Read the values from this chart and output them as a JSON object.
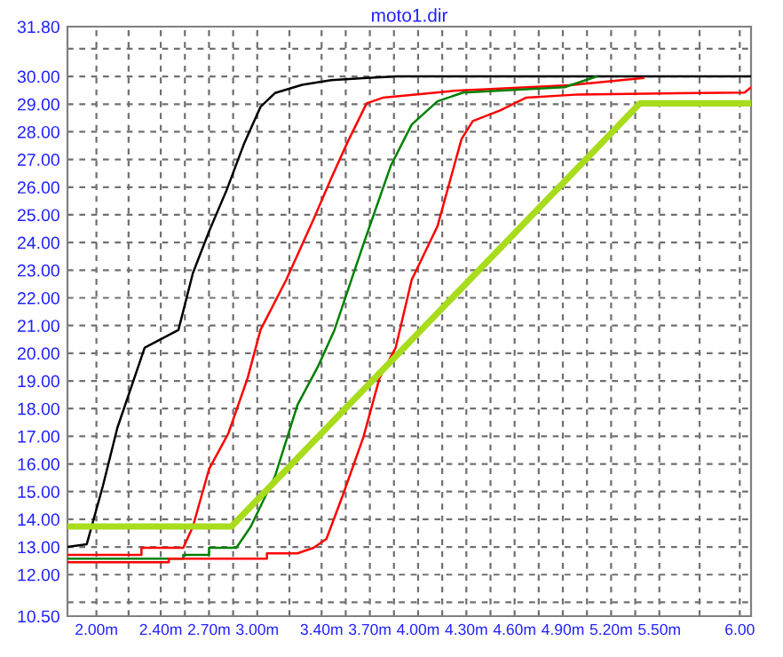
{
  "chart_data": {
    "type": "line",
    "title": "moto1.dir",
    "xlim": [
      1.82,
      6.07
    ],
    "ylim": [
      10.5,
      31.8
    ],
    "xticks": [
      {
        "value": 2.0,
        "label": "2.00m"
      },
      {
        "value": 2.2,
        "label": null
      },
      {
        "value": 2.4,
        "label": "2.40m"
      },
      {
        "value": 2.55,
        "label": null
      },
      {
        "value": 2.7,
        "label": "2.70m"
      },
      {
        "value": 2.85,
        "label": null
      },
      {
        "value": 3.0,
        "label": "3.00m"
      },
      {
        "value": 3.2,
        "label": null
      },
      {
        "value": 3.4,
        "label": "3.40m"
      },
      {
        "value": 3.55,
        "label": null
      },
      {
        "value": 3.7,
        "label": "3.70m"
      },
      {
        "value": 3.85,
        "label": null
      },
      {
        "value": 4.0,
        "label": "4.00m"
      },
      {
        "value": 4.15,
        "label": null
      },
      {
        "value": 4.3,
        "label": "4.30m"
      },
      {
        "value": 4.45,
        "label": null
      },
      {
        "value": 4.6,
        "label": "4.60m"
      },
      {
        "value": 4.75,
        "label": null
      },
      {
        "value": 4.9,
        "label": "4.90m"
      },
      {
        "value": 5.05,
        "label": null
      },
      {
        "value": 5.2,
        "label": "5.20m"
      },
      {
        "value": 5.35,
        "label": null
      },
      {
        "value": 5.5,
        "label": "5.50m"
      },
      {
        "value": 5.75,
        "label": null
      },
      {
        "value": 6.0,
        "label": "6.00"
      }
    ],
    "yticks": [
      {
        "value": 10.5,
        "label": "10.50"
      },
      {
        "value": 11,
        "label": null
      },
      {
        "value": 12,
        "label": "12.00"
      },
      {
        "value": 13,
        "label": "13.00"
      },
      {
        "value": 14,
        "label": "14.00"
      },
      {
        "value": 15,
        "label": "15.00"
      },
      {
        "value": 16,
        "label": "16.00"
      },
      {
        "value": 17,
        "label": "17.00"
      },
      {
        "value": 18,
        "label": "18.00"
      },
      {
        "value": 19,
        "label": "19.00"
      },
      {
        "value": 20,
        "label": "20.00"
      },
      {
        "value": 21,
        "label": "21.00"
      },
      {
        "value": 22,
        "label": "22.00"
      },
      {
        "value": 23,
        "label": "23.00"
      },
      {
        "value": 24,
        "label": "24.00"
      },
      {
        "value": 25,
        "label": "25.00"
      },
      {
        "value": 26,
        "label": "26.00"
      },
      {
        "value": 27,
        "label": "27.00"
      },
      {
        "value": 28,
        "label": "28.00"
      },
      {
        "value": 29,
        "label": "29.00"
      },
      {
        "value": 30,
        "label": "30.00"
      },
      {
        "value": 31,
        "label": null
      },
      {
        "value": 31.8,
        "label": "31.80"
      }
    ],
    "grid": true,
    "legend": false,
    "marker": "none",
    "line_style": "solid",
    "series": [
      {
        "color": "#000000",
        "x": [
          1.82,
          1.94,
          2.04,
          2.13,
          2.3,
          2.51,
          2.6,
          2.7,
          2.81,
          2.92,
          3.02,
          3.11,
          3.28,
          3.46,
          3.66,
          3.87,
          6.07
        ],
        "values": [
          13.0,
          13.1,
          15.2,
          17.3,
          20.2,
          20.84,
          22.9,
          24.4,
          25.9,
          27.6,
          28.9,
          29.4,
          29.7,
          29.87,
          29.94,
          30.0,
          30.0
        ]
      },
      {
        "color": "#ff0000",
        "x": [
          1.82,
          2.28,
          2.28,
          2.54,
          2.6,
          2.7,
          2.82,
          2.94,
          3.02,
          3.18,
          3.35,
          3.46,
          3.56,
          3.68,
          3.78,
          4.22,
          4.94,
          5.4
        ],
        "values": [
          12.71,
          12.71,
          12.97,
          12.97,
          13.74,
          15.81,
          17.1,
          19.1,
          20.84,
          22.65,
          24.84,
          26.32,
          27.61,
          29.03,
          29.23,
          29.48,
          29.68,
          29.94
        ]
      },
      {
        "color": "#008000",
        "x": [
          1.82,
          2.54,
          2.54,
          2.7,
          2.7,
          2.87,
          2.96,
          3.11,
          3.25,
          3.38,
          3.48,
          3.66,
          3.83,
          3.96,
          4.12,
          4.28,
          4.91,
          5.11
        ],
        "values": [
          12.58,
          12.58,
          12.71,
          12.71,
          12.97,
          12.97,
          13.74,
          15.55,
          18.13,
          19.55,
          20.84,
          23.94,
          26.77,
          28.26,
          29.1,
          29.42,
          29.61,
          30.0
        ]
      },
      {
        "color": "#ff0000",
        "x": [
          1.82,
          2.45,
          2.45,
          3.06,
          3.06,
          3.25,
          3.35,
          3.43,
          3.53,
          3.66,
          3.76,
          3.86,
          3.96,
          4.12,
          4.27,
          4.34,
          4.51,
          4.67,
          5.0,
          6.03,
          6.07
        ],
        "values": [
          12.45,
          12.45,
          12.58,
          12.58,
          12.77,
          12.77,
          12.97,
          13.29,
          14.84,
          16.97,
          19.1,
          20.19,
          22.65,
          24.58,
          27.74,
          28.39,
          28.77,
          29.23,
          29.35,
          29.42,
          29.61
        ]
      },
      {
        "color": "#a8dc1c",
        "x": [
          1.82,
          2.84,
          5.38,
          6.07
        ],
        "values": [
          13.74,
          13.74,
          29.03,
          29.03
        ]
      }
    ]
  }
}
